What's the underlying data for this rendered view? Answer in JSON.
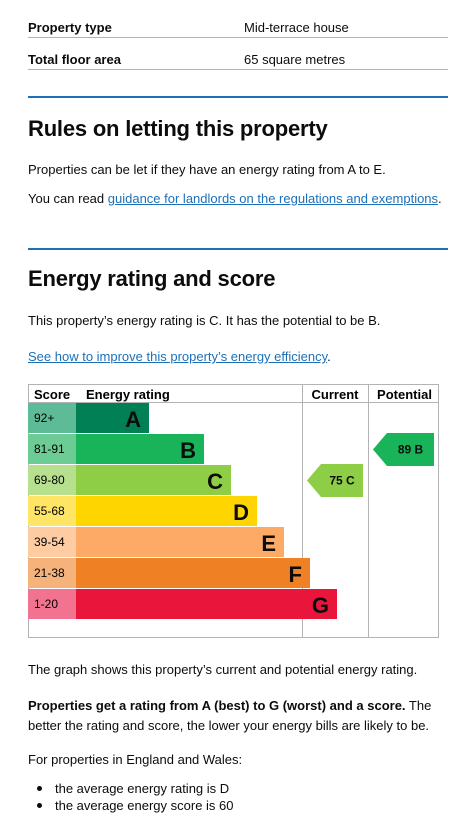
{
  "summary": [
    {
      "label": "Property type",
      "value": "Mid-terrace house"
    },
    {
      "label": "Total floor area",
      "value": "65 square metres"
    }
  ],
  "letting": {
    "heading": "Rules on letting this property",
    "para1": "Properties can be let if they have an energy rating from A to E.",
    "para2_prefix": "You can read ",
    "para2_link": "guidance for landlords on the regulations and exemptions",
    "para2_suffix": "."
  },
  "energy": {
    "heading": "Energy rating and score",
    "intro": "This property’s energy rating is C. It has the potential to be B.",
    "improve_link": "See how to improve this property’s energy efficiency",
    "improve_suffix": "."
  },
  "chart_data": {
    "type": "table",
    "headers": {
      "score": "Score",
      "rating": "Energy rating",
      "current": "Current",
      "potential": "Potential"
    },
    "bands": [
      {
        "range": "92+",
        "letter": "A",
        "color": "#008054"
      },
      {
        "range": "81-91",
        "letter": "B",
        "color": "#19b459"
      },
      {
        "range": "69-80",
        "letter": "C",
        "color": "#8dce46"
      },
      {
        "range": "55-68",
        "letter": "D",
        "color": "#ffd500"
      },
      {
        "range": "39-54",
        "letter": "E",
        "color": "#fcaa65"
      },
      {
        "range": "21-38",
        "letter": "F",
        "color": "#ef8023"
      },
      {
        "range": "1-20",
        "letter": "G",
        "color": "#e9153b"
      }
    ],
    "current": {
      "score": 75,
      "letter": "C",
      "label": "75 C"
    },
    "potential": {
      "score": 89,
      "letter": "B",
      "label": "89 B"
    }
  },
  "after_chart": {
    "caption": "The graph shows this property’s current and potential energy rating.",
    "bold_part": "Properties get a rating from A (best) to G (worst) and a score.",
    "rest_part": " The better the rating and score, the lower your energy bills are likely to be.",
    "avg_intro": "For properties in England and Wales:",
    "bullets": [
      "the average energy rating is D",
      "the average energy score is 60"
    ]
  }
}
